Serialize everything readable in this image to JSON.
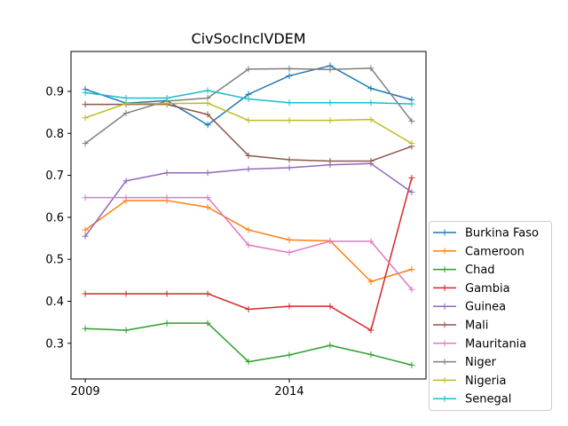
{
  "chart_data": {
    "type": "line",
    "title": "CivSocInclVDEM",
    "xlabel": "",
    "ylabel": "",
    "x": [
      2009,
      2010,
      2011,
      2012,
      2013,
      2014,
      2015,
      2016,
      2017
    ],
    "xlim": [
      2008.65,
      2017.35
    ],
    "ylim": [
      0.215,
      0.995
    ],
    "xticks": [
      2009,
      2014
    ],
    "yticks": [
      0.3,
      0.4,
      0.5,
      0.6,
      0.7,
      0.8,
      0.9
    ],
    "ytick_labels": [
      "0.3",
      "0.4",
      "0.5",
      "0.6",
      "0.7",
      "0.8",
      "0.9"
    ],
    "grid": false,
    "legend_position": "lower-right-outside",
    "series": [
      {
        "name": "Burkina Faso",
        "color": "#1f77b4",
        "values": [
          0.905,
          0.872,
          0.878,
          0.82,
          0.893,
          0.937,
          0.961,
          0.907,
          0.88
        ]
      },
      {
        "name": "Cameroon",
        "color": "#ff7f0e",
        "values": [
          0.57,
          0.64,
          0.64,
          0.624,
          0.57,
          0.546,
          0.544,
          0.447,
          0.476
        ]
      },
      {
        "name": "Chad",
        "color": "#2ca02c",
        "values": [
          0.335,
          0.331,
          0.348,
          0.348,
          0.256,
          0.272,
          0.295,
          0.273,
          0.248
        ]
      },
      {
        "name": "Gambia",
        "color": "#d62728",
        "values": [
          0.418,
          0.418,
          0.418,
          0.418,
          0.381,
          0.388,
          0.388,
          0.331,
          0.694
        ]
      },
      {
        "name": "Guinea",
        "color": "#9467bd",
        "values": [
          0.555,
          0.687,
          0.706,
          0.706,
          0.715,
          0.718,
          0.725,
          0.728,
          0.66
        ]
      },
      {
        "name": "Mali",
        "color": "#8c564b",
        "values": [
          0.869,
          0.869,
          0.869,
          0.845,
          0.747,
          0.737,
          0.734,
          0.734,
          0.769
        ]
      },
      {
        "name": "Mauritania",
        "color": "#e377c2",
        "values": [
          0.647,
          0.647,
          0.647,
          0.647,
          0.534,
          0.516,
          0.543,
          0.543,
          0.428
        ]
      },
      {
        "name": "Niger",
        "color": "#7f7f7f",
        "values": [
          0.776,
          0.848,
          0.877,
          0.884,
          0.953,
          0.954,
          0.952,
          0.955,
          0.829
        ]
      },
      {
        "name": "Nigeria",
        "color": "#bcbd22",
        "values": [
          0.837,
          0.871,
          0.871,
          0.872,
          0.831,
          0.831,
          0.831,
          0.833,
          0.776
        ]
      },
      {
        "name": "Senegal",
        "color": "#17becf",
        "values": [
          0.897,
          0.884,
          0.884,
          0.902,
          0.882,
          0.873,
          0.873,
          0.873,
          0.87
        ]
      }
    ]
  }
}
